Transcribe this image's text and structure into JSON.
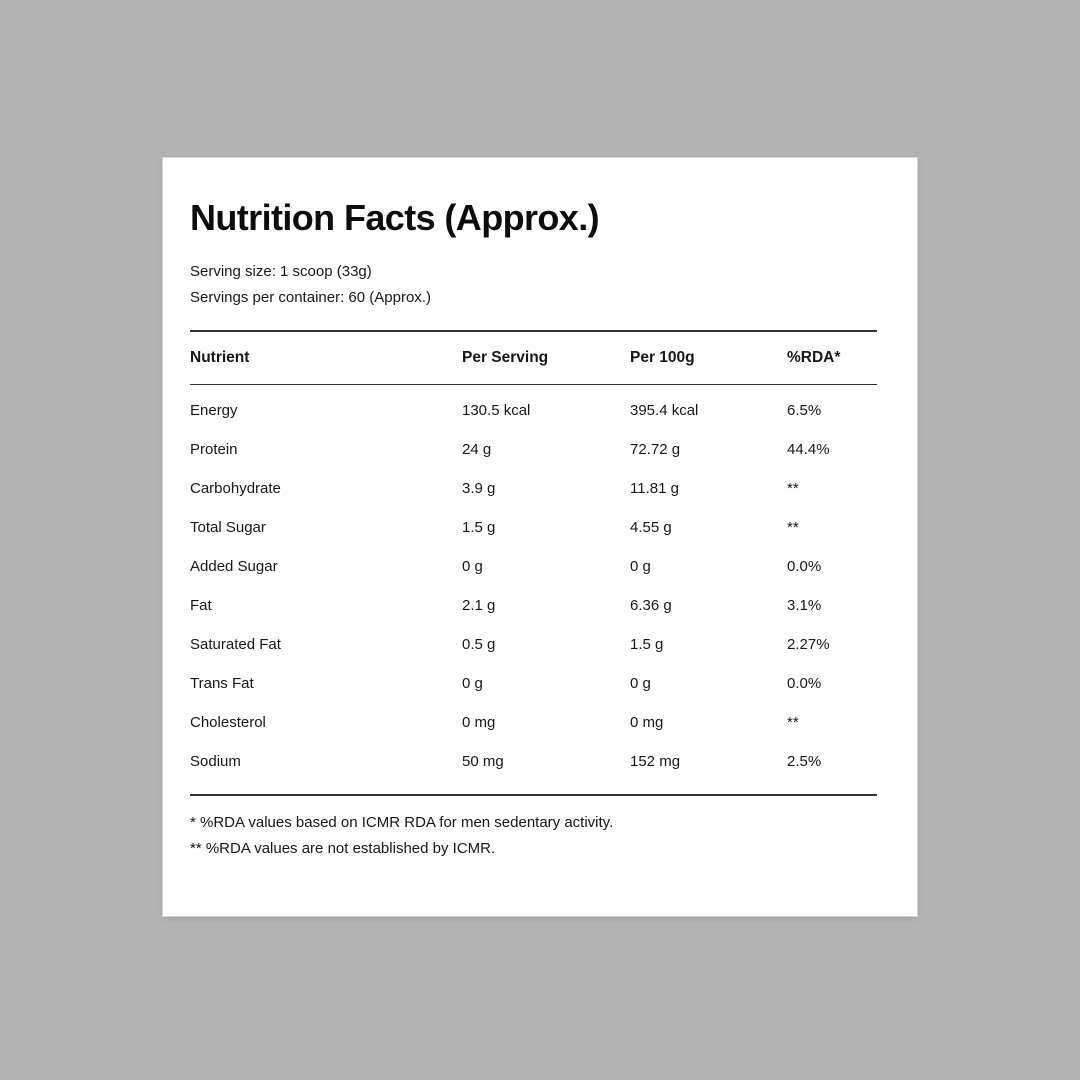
{
  "page": {
    "background_color": "#b3b3b3",
    "card_color": "#ffffff",
    "text_color": "#15171a"
  },
  "header": {
    "title": "Nutrition Facts (Approx.)",
    "serving_size": "Serving size: 1 scoop (33g)",
    "servings_per_container": "Servings per container: 60 (Approx.)"
  },
  "table": {
    "columns": [
      "Nutrient",
      "Per Serving",
      "Per 100g",
      "%RDA*"
    ],
    "rows": [
      {
        "nutrient": "Energy",
        "per_serving": "130.5 kcal",
        "per_100g": "395.4 kcal",
        "rda": "6.5%"
      },
      {
        "nutrient": "Protein",
        "per_serving": "24 g",
        "per_100g": "72.72 g",
        "rda": "44.4%"
      },
      {
        "nutrient": "Carbohydrate",
        "per_serving": "3.9 g",
        "per_100g": "11.81 g",
        "rda": "**"
      },
      {
        "nutrient": "Total Sugar",
        "per_serving": "1.5 g",
        "per_100g": "4.55 g",
        "rda": "**"
      },
      {
        "nutrient": "Added Sugar",
        "per_serving": "0 g",
        "per_100g": "0 g",
        "rda": "0.0%"
      },
      {
        "nutrient": "Fat",
        "per_serving": "2.1 g",
        "per_100g": "6.36 g",
        "rda": "3.1%"
      },
      {
        "nutrient": "Saturated Fat",
        "per_serving": "0.5 g",
        "per_100g": "1.5 g",
        "rda": "2.27%"
      },
      {
        "nutrient": "Trans Fat",
        "per_serving": "0 g",
        "per_100g": "0 g",
        "rda": "0.0%"
      },
      {
        "nutrient": "Cholesterol",
        "per_serving": "0 mg",
        "per_100g": "0 mg",
        "rda": "**"
      },
      {
        "nutrient": "Sodium",
        "per_serving": "50 mg",
        "per_100g": "152 mg",
        "rda": "2.5%"
      }
    ]
  },
  "footnotes": [
    "* %RDA values based on ICMR RDA for men sedentary activity.",
    "** %RDA values are not established by ICMR."
  ]
}
